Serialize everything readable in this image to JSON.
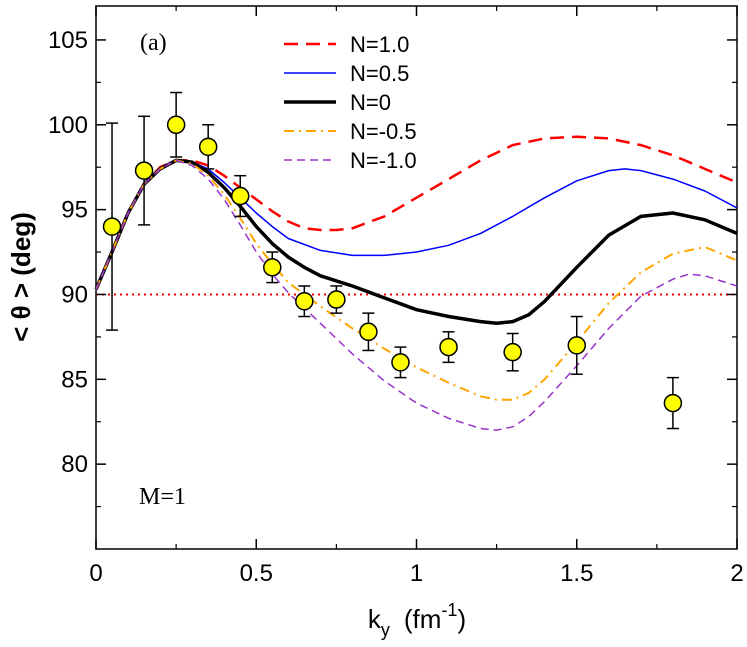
{
  "chart_data": {
    "type": "line",
    "panel_label": "(a)",
    "annotation": "M=1",
    "xlabel": {
      "base": "k",
      "sub": "y",
      "unit_pre": "(fm",
      "unit_sup": "-1",
      "unit_post": ")"
    },
    "ylabel": "< θ >  (deg)",
    "xlim": [
      0,
      2
    ],
    "ylim": [
      75.0,
      107.0
    ],
    "xticks": [
      0,
      0.5,
      1,
      1.5,
      2
    ],
    "xtick_labels": [
      "0",
      "0.5",
      "1",
      "1.5",
      "2"
    ],
    "yticks": [
      80,
      85,
      90,
      95,
      100,
      105
    ],
    "ytick_labels": [
      "80",
      "85",
      "90",
      "95",
      "100",
      "105"
    ],
    "reference_line": {
      "y": 90,
      "color": "#ff0000",
      "style": "dotted"
    },
    "legend_position": "top-center",
    "series": [
      {
        "name": "N=1.0",
        "color": "#ff0000",
        "dash": "14,8",
        "width": 2.5,
        "x": [
          0,
          0.05,
          0.1,
          0.15,
          0.2,
          0.25,
          0.3,
          0.35,
          0.4,
          0.45,
          0.5,
          0.55,
          0.6,
          0.65,
          0.7,
          0.75,
          0.8,
          0.9,
          1.0,
          1.1,
          1.2,
          1.3,
          1.4,
          1.5,
          1.6,
          1.7,
          1.8,
          1.9,
          2.0
        ],
        "y": [
          90.3,
          92.5,
          94.8,
          96.5,
          97.5,
          97.9,
          97.9,
          97.6,
          97.0,
          96.3,
          95.6,
          94.9,
          94.3,
          93.9,
          93.8,
          93.8,
          93.9,
          94.6,
          95.7,
          96.8,
          97.9,
          98.8,
          99.2,
          99.3,
          99.2,
          98.8,
          98.2,
          97.4,
          96.6
        ]
      },
      {
        "name": "N=0.5",
        "color": "#0000ff",
        "dash": "",
        "width": 1.5,
        "x": [
          0,
          0.05,
          0.1,
          0.15,
          0.2,
          0.25,
          0.3,
          0.35,
          0.4,
          0.45,
          0.5,
          0.55,
          0.6,
          0.7,
          0.8,
          0.9,
          1.0,
          1.1,
          1.2,
          1.3,
          1.4,
          1.5,
          1.6,
          1.65,
          1.7,
          1.8,
          1.9,
          2.0
        ],
        "y": [
          90.3,
          92.5,
          94.8,
          96.5,
          97.4,
          97.9,
          97.8,
          97.4,
          96.6,
          95.7,
          94.8,
          94.0,
          93.3,
          92.6,
          92.3,
          92.3,
          92.5,
          92.9,
          93.6,
          94.6,
          95.7,
          96.7,
          97.3,
          97.4,
          97.3,
          96.8,
          96.1,
          95.1
        ]
      },
      {
        "name": "N=0",
        "color": "#000000",
        "dash": "",
        "width": 3.5,
        "x": [
          0,
          0.05,
          0.1,
          0.15,
          0.2,
          0.25,
          0.3,
          0.35,
          0.4,
          0.45,
          0.5,
          0.55,
          0.6,
          0.65,
          0.7,
          0.8,
          0.9,
          1.0,
          1.1,
          1.2,
          1.25,
          1.3,
          1.35,
          1.4,
          1.5,
          1.6,
          1.7,
          1.8,
          1.9,
          2.0
        ],
        "y": [
          90.3,
          92.5,
          94.8,
          96.5,
          97.4,
          97.9,
          97.8,
          97.2,
          96.3,
          95.2,
          94.0,
          93.0,
          92.2,
          91.6,
          91.1,
          90.5,
          89.8,
          89.1,
          88.7,
          88.4,
          88.3,
          88.4,
          88.8,
          89.6,
          91.6,
          93.5,
          94.6,
          94.8,
          94.4,
          93.6
        ]
      },
      {
        "name": "N=-0.5",
        "color": "#ffa500",
        "dash": "10,5,2,5",
        "width": 2,
        "x": [
          0,
          0.05,
          0.1,
          0.15,
          0.2,
          0.25,
          0.3,
          0.35,
          0.4,
          0.45,
          0.5,
          0.55,
          0.6,
          0.7,
          0.8,
          0.9,
          1.0,
          1.1,
          1.2,
          1.25,
          1.3,
          1.35,
          1.4,
          1.5,
          1.6,
          1.7,
          1.8,
          1.9,
          2.0
        ],
        "y": [
          90.3,
          92.5,
          94.8,
          96.5,
          97.4,
          97.9,
          97.7,
          97.0,
          95.9,
          94.5,
          93.0,
          91.8,
          90.7,
          89.3,
          88.0,
          86.8,
          85.7,
          84.8,
          84.0,
          83.8,
          83.8,
          84.2,
          85.0,
          87.2,
          89.5,
          91.3,
          92.4,
          92.8,
          92.0
        ]
      },
      {
        "name": "N=-1.0",
        "color": "#9933cc",
        "dash": "8,5",
        "width": 1.5,
        "x": [
          0,
          0.05,
          0.1,
          0.15,
          0.2,
          0.25,
          0.3,
          0.35,
          0.4,
          0.45,
          0.5,
          0.55,
          0.6,
          0.7,
          0.8,
          0.9,
          1.0,
          1.1,
          1.2,
          1.25,
          1.3,
          1.35,
          1.4,
          1.5,
          1.6,
          1.7,
          1.8,
          1.85,
          1.9,
          2.0
        ],
        "y": [
          90.3,
          92.5,
          94.8,
          96.5,
          97.4,
          97.9,
          97.6,
          96.8,
          95.6,
          94.1,
          92.5,
          91.2,
          90.1,
          88.3,
          86.5,
          84.9,
          83.6,
          82.7,
          82.1,
          82.0,
          82.2,
          82.8,
          83.7,
          85.8,
          88.0,
          89.9,
          90.9,
          91.2,
          91.1,
          90.5
        ]
      }
    ],
    "data_points": {
      "color": "#ffff00",
      "x": [
        0.05,
        0.15,
        0.25,
        0.35,
        0.45,
        0.55,
        0.65,
        0.75,
        0.85,
        0.95,
        1.1,
        1.3,
        1.5,
        1.8
      ],
      "y": [
        94.0,
        97.3,
        100.0,
        98.7,
        95.8,
        91.6,
        89.6,
        89.7,
        87.8,
        86.0,
        86.9,
        86.6,
        87.0,
        83.6
      ],
      "err": [
        6.1,
        3.2,
        1.9,
        1.3,
        1.2,
        0.9,
        0.9,
        0.8,
        1.1,
        0.9,
        0.9,
        1.1,
        1.7,
        1.5
      ]
    }
  }
}
